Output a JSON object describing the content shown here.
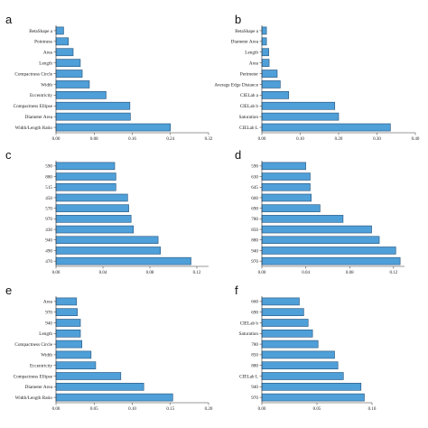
{
  "chart_data": [
    {
      "type": "bar",
      "orientation": "horizontal",
      "panel": "a",
      "categories": [
        "BetaShape a",
        "Pointness",
        "Area",
        "Length",
        "Compactness Circle",
        "Width",
        "Eccentricity",
        "Compactness Ellipse",
        "Diameter Area",
        "Width/Length Ratio"
      ],
      "values": [
        0.016,
        0.026,
        0.036,
        0.051,
        0.055,
        0.07,
        0.105,
        0.155,
        0.156,
        0.24
      ],
      "xlim": [
        0,
        0.32
      ],
      "xticks": [
        "0.00",
        "0.08",
        "0.16",
        "0.24",
        "0.32"
      ],
      "grid": false,
      "color": "#4f9fd8"
    },
    {
      "type": "bar",
      "orientation": "horizontal",
      "panel": "b",
      "categories": [
        "BetaShape a",
        "Diameter Area",
        "Length",
        "Area",
        "Perimeter",
        "Average Edge Distance",
        "CIELab a",
        "CIELab b",
        "Saturation",
        "CIELab L"
      ],
      "values": [
        0.012,
        0.012,
        0.018,
        0.019,
        0.04,
        0.048,
        0.07,
        0.19,
        0.2,
        0.335
      ],
      "xlim": [
        0,
        0.4
      ],
      "xticks": [
        "0.00",
        "0.10",
        "0.20",
        "0.30",
        "0.40"
      ],
      "grid": false,
      "color": "#4f9fd8"
    },
    {
      "type": "bar",
      "orientation": "horizontal",
      "panel": "c",
      "categories": [
        "590",
        "880",
        "515",
        "450",
        "570",
        "970",
        "430",
        "940",
        "490",
        "470"
      ],
      "values": [
        0.05,
        0.051,
        0.051,
        0.061,
        0.062,
        0.064,
        0.066,
        0.087,
        0.089,
        0.115
      ],
      "xlim": [
        0,
        0.13
      ],
      "xticks": [
        "0.00",
        "0.04",
        "0.08",
        "0.12"
      ],
      "grid": false,
      "color": "#4f9fd8"
    },
    {
      "type": "bar",
      "orientation": "horizontal",
      "panel": "d",
      "categories": [
        "590",
        "630",
        "645",
        "660",
        "690",
        "780",
        "850",
        "880",
        "940",
        "970"
      ],
      "values": [
        0.04,
        0.044,
        0.044,
        0.045,
        0.053,
        0.074,
        0.1,
        0.107,
        0.122,
        0.126
      ],
      "xlim": [
        0,
        0.13
      ],
      "xticks": [
        "0.00",
        "0.04",
        "0.08",
        "0.12"
      ],
      "grid": false,
      "color": "#4f9fd8"
    },
    {
      "type": "bar",
      "orientation": "horizontal",
      "panel": "e",
      "categories": [
        "Area",
        "970",
        "940",
        "Length",
        "Compactness Circle",
        "Width",
        "Eccentricity",
        "Compactness Ellipse",
        "Diameter Area",
        "Width/Length Ratio"
      ],
      "values": [
        0.027,
        0.028,
        0.032,
        0.032,
        0.034,
        0.046,
        0.052,
        0.085,
        0.115,
        0.153
      ],
      "xlim": [
        0,
        0.2
      ],
      "xticks": [
        "0.00",
        "0.05",
        "0.10",
        "0.15",
        "0.20"
      ],
      "grid": false,
      "color": "#4f9fd8"
    },
    {
      "type": "bar",
      "orientation": "horizontal",
      "panel": "f",
      "categories": [
        "660",
        "690",
        "CIELab b",
        "Saturation",
        "780",
        "850",
        "880",
        "CIELab L",
        "940",
        "970"
      ],
      "values": [
        0.034,
        0.038,
        0.042,
        0.046,
        0.051,
        0.066,
        0.069,
        0.074,
        0.09,
        0.093
      ],
      "xlim": [
        0,
        0.1
      ],
      "xticks": [
        "0.00",
        "0.05",
        "0.10"
      ],
      "grid": false,
      "color": "#4f9fd8"
    }
  ]
}
